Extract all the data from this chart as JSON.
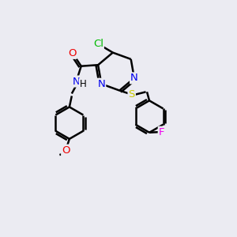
{
  "bg_color": "#ebebf2",
  "atom_colors": {
    "C": "#000000",
    "N": "#0000ee",
    "O": "#ee0000",
    "S": "#cccc00",
    "Cl": "#00bb00",
    "F": "#ee00ee",
    "H": "#000000"
  },
  "bond_color": "#000000",
  "bond_width": 1.8,
  "font_size": 9.5
}
